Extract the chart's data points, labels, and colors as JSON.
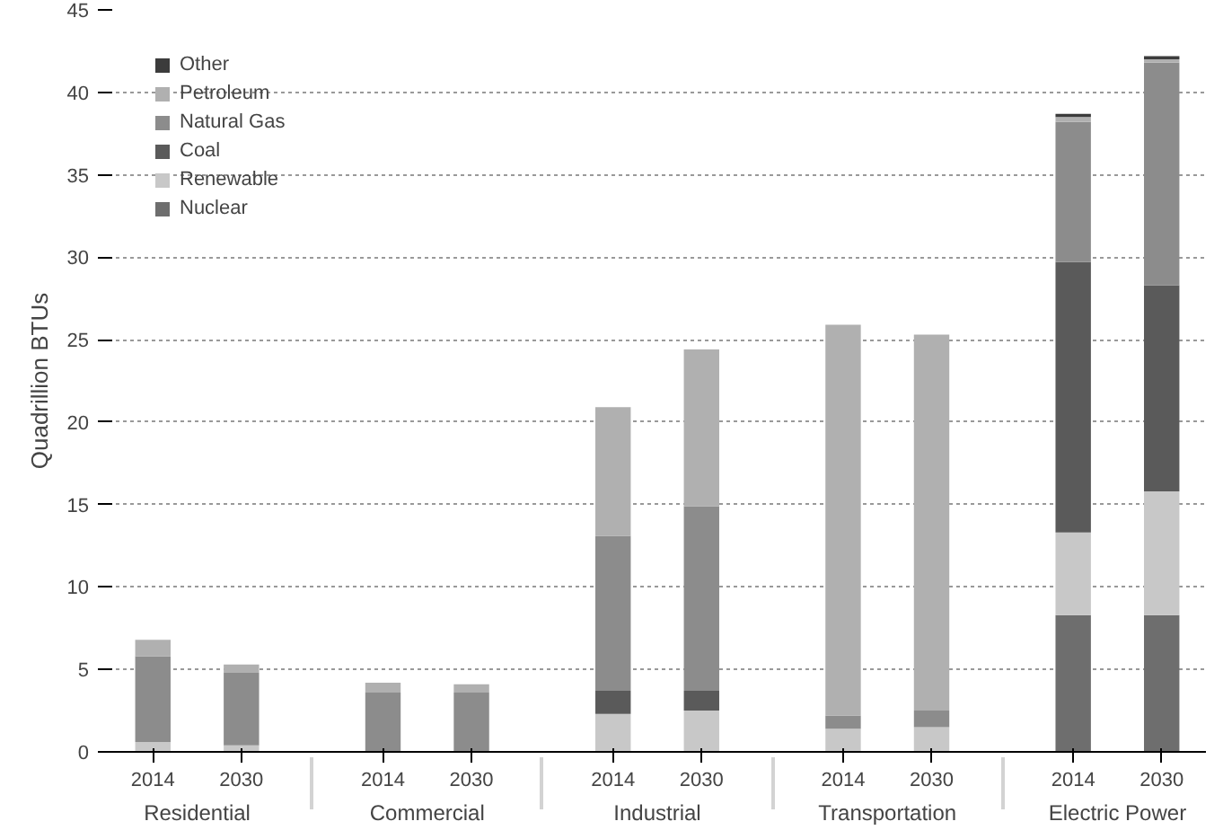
{
  "chart_data": {
    "type": "bar",
    "stacked": true,
    "ylabel": "Quadrillion BTUs",
    "categories": [
      "2014",
      "2030",
      "2014",
      "2030",
      "2014",
      "2030",
      "2014",
      "2030",
      "2014",
      "2030"
    ],
    "annotations": [
      "Residential",
      "Commercial",
      "Industrial",
      "Transportation",
      "Electric Power"
    ],
    "series": [
      {
        "name": "Nuclear",
        "color": "#6e6e6e",
        "values": [
          0,
          0,
          0,
          0,
          0,
          0,
          0,
          0,
          8.3,
          8.3
        ]
      },
      {
        "name": "Renewable",
        "color": "#c8c8c8",
        "values": [
          0.6,
          0.4,
          null,
          null,
          2.3,
          2.5,
          1.4,
          1.5,
          5.0,
          7.5
        ]
      },
      {
        "name": "Coal",
        "color": "#5a5a5a",
        "values": [
          0,
          0,
          0,
          0,
          1.4,
          1.2,
          0,
          0,
          16.4,
          12.5
        ]
      },
      {
        "name": "Natural Gas",
        "color": "#8c8c8c",
        "values": [
          5.2,
          4.4,
          3.6,
          3.6,
          9.4,
          11.2,
          0.8,
          1.0,
          8.5,
          13.5
        ]
      },
      {
        "name": "Petroleum",
        "color": "#b0b0b0",
        "values": [
          1.0,
          0.5,
          0.6,
          0.5,
          7.8,
          9.5,
          23.7,
          22.8,
          0.3,
          0.2
        ]
      },
      {
        "name": "Other",
        "color": "#3c3c3c",
        "values": [
          0,
          0,
          0,
          0,
          0,
          0,
          0,
          0,
          0.2,
          0.2
        ]
      }
    ],
    "ylim": [
      0,
      45
    ],
    "yticks": [
      0,
      5,
      10,
      15,
      20,
      25,
      30,
      35,
      40,
      45
    ],
    "grid": "y",
    "legend": "top left"
  }
}
